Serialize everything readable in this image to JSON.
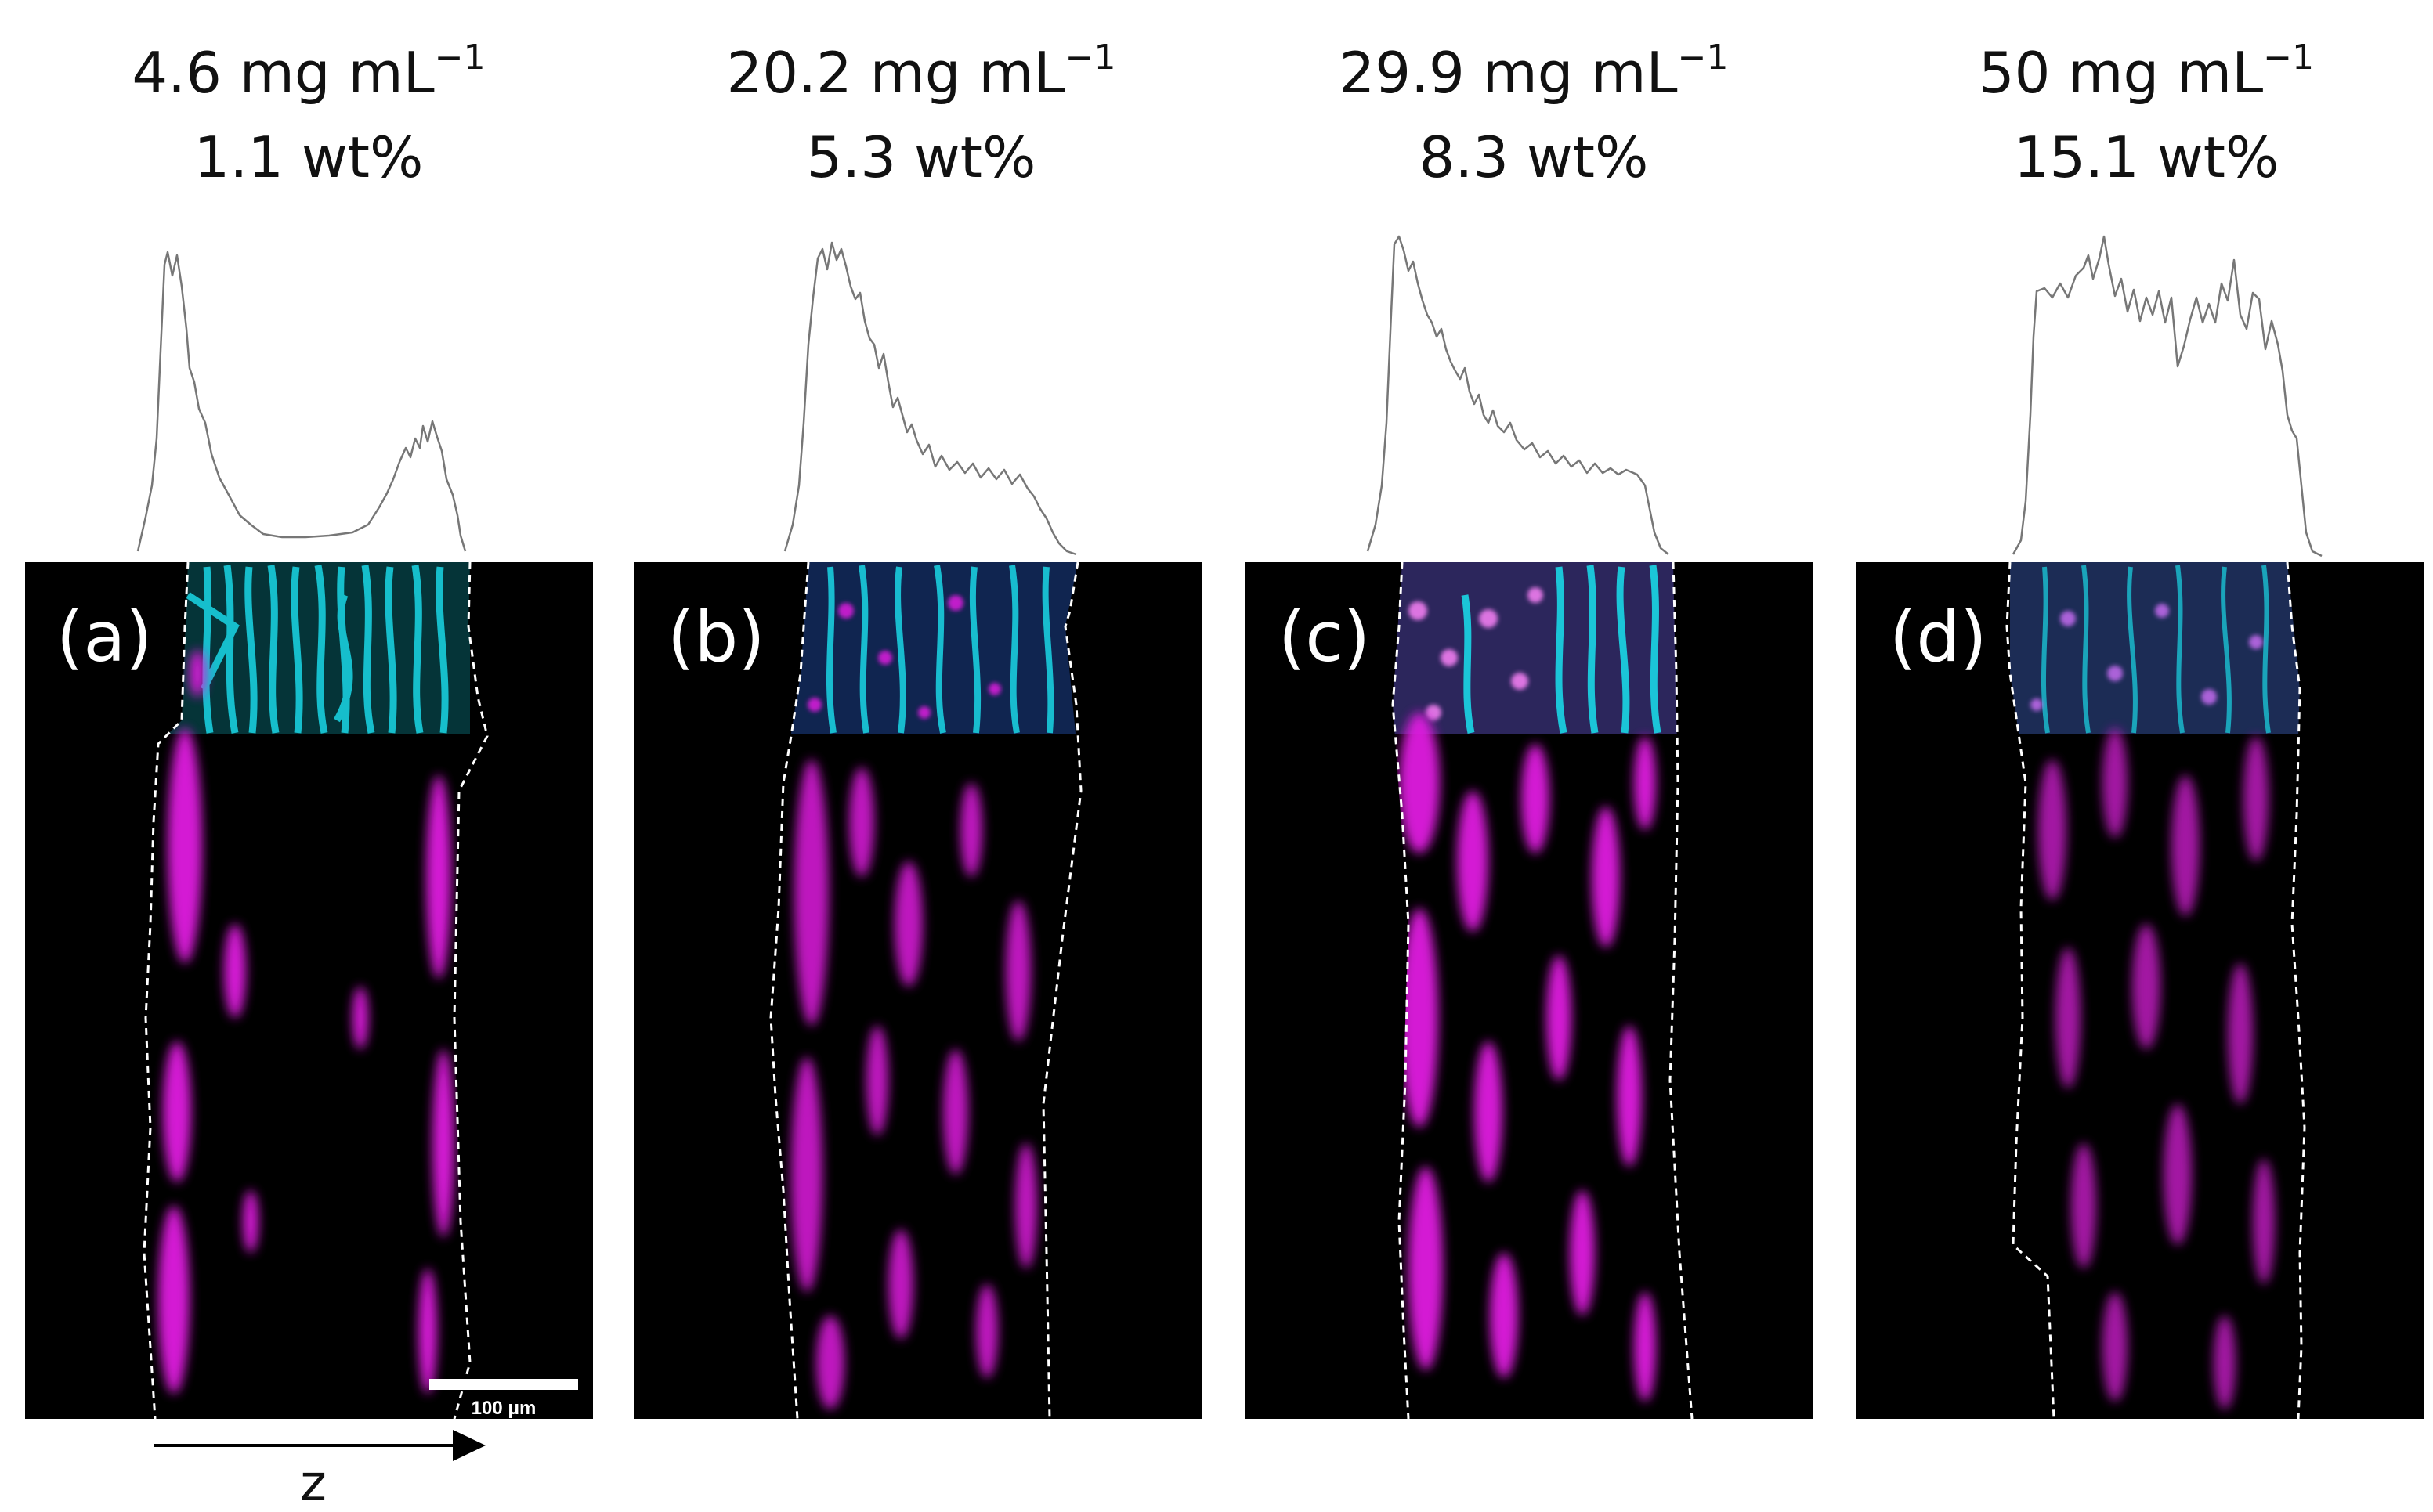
{
  "panels": [
    {
      "label": "(a)",
      "concentration": "4.6 mg mL",
      "concentration_sup": "−1",
      "weight_fraction": "1.1 wt%"
    },
    {
      "label": "(b)",
      "concentration": "20.2 mg mL",
      "concentration_sup": "−1",
      "weight_fraction": "5.3 wt%"
    },
    {
      "label": "(c)",
      "concentration": "29.9 mg mL",
      "concentration_sup": "−1",
      "weight_fraction": "8.3 wt%"
    },
    {
      "label": "(d)",
      "concentration": "50 mg mL",
      "concentration_sup": "−1",
      "weight_fraction": "15.1 wt%"
    }
  ],
  "scale_bar": {
    "label": "100 μm"
  },
  "axis": {
    "label": "z"
  },
  "colors": {
    "background": "#ffffff",
    "image_background": "#000000",
    "cells": "#e01ee0",
    "fibers": "#1ad7e6",
    "profile_line": "#777777",
    "outline": "#ffffff"
  }
}
